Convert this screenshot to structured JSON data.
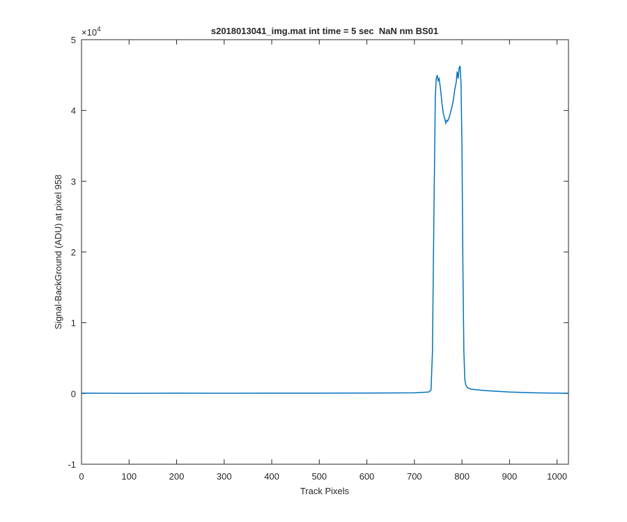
{
  "chart_data": {
    "type": "line",
    "title": "s2018013041_img.mat int time = 5 sec  NaN nm BS01",
    "x_label": "Track Pixels",
    "y_label": "Signal-BackGround (ADU) at pixel 958",
    "y_multiplier": {
      "base": "×10",
      "exponent": "4"
    },
    "color": "#0072bd",
    "x": [
      0,
      100,
      200,
      300,
      400,
      500,
      600,
      700,
      730,
      735,
      738,
      741,
      744,
      746,
      748,
      750,
      752,
      755,
      758,
      761,
      764,
      766,
      768,
      770,
      773,
      776,
      779,
      782,
      785,
      788,
      790,
      792,
      794,
      796,
      798,
      800,
      802,
      804,
      806,
      808,
      812,
      820,
      850,
      900,
      950,
      1000,
      1024
    ],
    "values": [
      0.005,
      0.002,
      0.004,
      0.003,
      0.005,
      0.004,
      0.006,
      0.01,
      0.02,
      0.05,
      0.6,
      2.5,
      4.2,
      4.45,
      4.5,
      4.42,
      4.45,
      4.3,
      4.1,
      3.95,
      3.88,
      3.82,
      3.86,
      3.85,
      3.9,
      3.97,
      4.05,
      4.15,
      4.3,
      4.4,
      4.55,
      4.45,
      4.6,
      4.63,
      4.4,
      3.5,
      1.8,
      0.6,
      0.2,
      0.12,
      0.08,
      0.06,
      0.04,
      0.02,
      0.01,
      0.005,
      0.003
    ],
    "xlim": [
      0,
      1024
    ],
    "xticks": [
      0,
      100,
      200,
      300,
      400,
      500,
      600,
      700,
      800,
      900,
      1000
    ],
    "ylim": [
      -1,
      5
    ],
    "yticks": [
      -1,
      0,
      1,
      2,
      3,
      4,
      5
    ]
  }
}
